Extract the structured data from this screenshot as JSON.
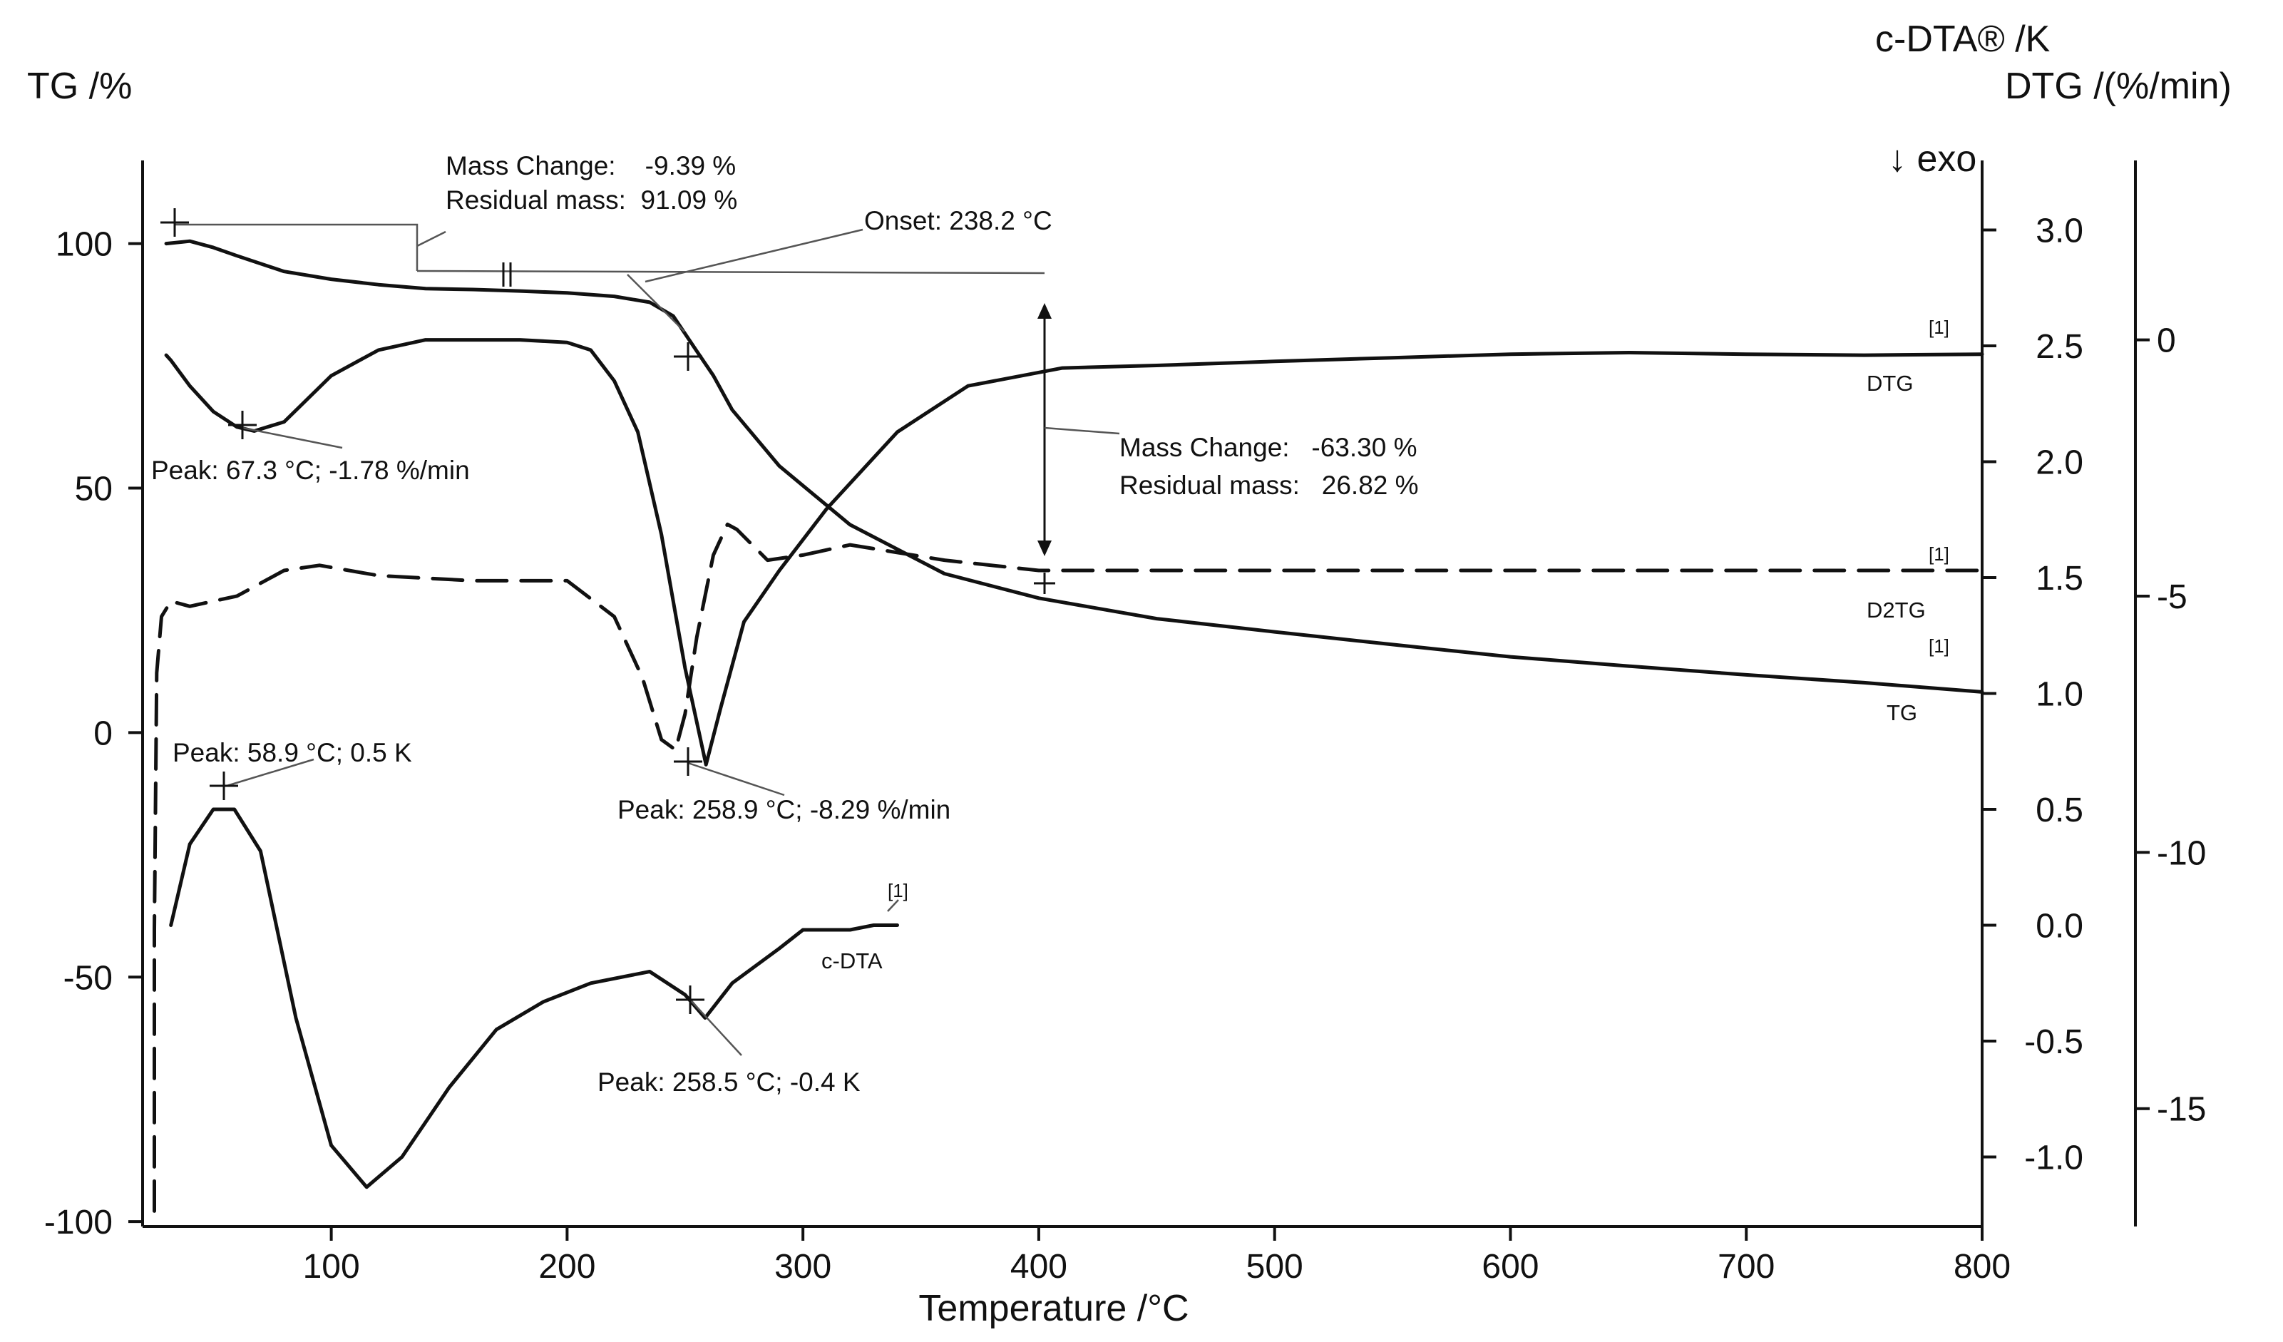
{
  "chart_data": {
    "type": "line",
    "title": "",
    "xlabel": "Temperature /°C",
    "xlim": [
      20,
      800
    ],
    "x_ticks": [
      100,
      200,
      300,
      400,
      500,
      600,
      700,
      800
    ],
    "y_axes": {
      "tg": {
        "label": "TG /%",
        "range": [
          -101,
          117
        ],
        "ticks": [
          100,
          50,
          0,
          -50,
          -100
        ]
      },
      "cdta": {
        "label": "c-DTA® /K",
        "exo_label": "↓ exo",
        "range": [
          -1.3,
          3.3
        ],
        "ticks": [
          "3.0",
          "2.5",
          "2.0",
          "1.5",
          "1.0",
          "0.5",
          "0.0",
          "-0.5",
          "-1.0"
        ]
      },
      "dtg": {
        "label": "DTG /(%/min)",
        "range": [
          -17.3,
          3.5
        ],
        "ticks": [
          0,
          -5,
          -10,
          -15
        ]
      }
    },
    "series": [
      {
        "name": "TG",
        "axis": "tg",
        "style": "solid",
        "x": [
          30,
          40,
          50,
          60,
          80,
          100,
          120,
          140,
          160,
          180,
          200,
          220,
          235,
          245,
          255,
          262,
          270,
          290,
          320,
          360,
          400,
          450,
          500,
          550,
          600,
          650,
          700,
          750,
          800
        ],
        "y": [
          100,
          100.5,
          99.2,
          97.5,
          94.3,
          92.7,
          91.6,
          90.8,
          90.6,
          90.3,
          89.9,
          89.2,
          88.0,
          85.2,
          78.0,
          73.0,
          66.0,
          54.5,
          42.5,
          32.5,
          27.5,
          23.3,
          20.6,
          18.0,
          15.5,
          13.6,
          11.8,
          10.2,
          8.3
        ]
      },
      {
        "name": "DTG",
        "axis": "dtg",
        "style": "solid",
        "x": [
          30,
          32,
          40,
          50,
          60,
          67.3,
          80,
          100,
          120,
          140,
          160,
          180,
          200,
          210,
          220,
          230,
          240,
          250,
          258.9,
          265,
          275,
          290,
          310,
          340,
          370,
          410,
          450,
          500,
          550,
          600,
          650,
          700,
          750,
          800
        ],
        "y": [
          -0.3,
          -0.4,
          -0.9,
          -1.4,
          -1.7,
          -1.78,
          -1.6,
          -0.7,
          -0.2,
          0.0,
          0.0,
          0.0,
          -0.05,
          -0.2,
          -0.8,
          -1.8,
          -3.8,
          -6.4,
          -8.29,
          -7.2,
          -5.5,
          -4.5,
          -3.3,
          -1.8,
          -0.9,
          -0.55,
          -0.5,
          -0.42,
          -0.35,
          -0.28,
          -0.25,
          -0.28,
          -0.3,
          -0.28
        ]
      },
      {
        "name": "D2TG",
        "axis": "dtg",
        "style": "dashed",
        "x": [
          25,
          25,
          26,
          28,
          32,
          40,
          60,
          80,
          95,
          120,
          160,
          200,
          220,
          232,
          240,
          246,
          250,
          255,
          262,
          268,
          272,
          285,
          300,
          320,
          360,
          400,
          500,
          600,
          700,
          800
        ],
        "y": [
          -17.0,
          -11.5,
          -6.5,
          -5.4,
          -5.1,
          -5.2,
          -5.0,
          -4.5,
          -4.4,
          -4.6,
          -4.7,
          -4.7,
          -5.4,
          -6.6,
          -7.8,
          -8.0,
          -7.3,
          -5.8,
          -4.2,
          -3.6,
          -3.7,
          -4.3,
          -4.2,
          -4.0,
          -4.3,
          -4.5,
          -4.5,
          -4.5,
          -4.5,
          -4.5
        ]
      },
      {
        "name": "c-DTA",
        "axis": "cdta",
        "style": "solid",
        "x": [
          32,
          40,
          50,
          58.9,
          70,
          85,
          100,
          115,
          130,
          150,
          170,
          190,
          210,
          235,
          250,
          258.5,
          270,
          290,
          300,
          320,
          330,
          340
        ],
        "y": [
          0.0,
          0.35,
          0.5,
          0.5,
          0.32,
          -0.4,
          -0.95,
          -1.13,
          -1.0,
          -0.7,
          -0.45,
          -0.33,
          -0.25,
          -0.2,
          -0.3,
          -0.4,
          -0.25,
          -0.1,
          -0.02,
          -0.02,
          0.0,
          0.0
        ]
      }
    ],
    "series_labels": {
      "dtg": "DTG",
      "d2tg": "D2TG",
      "tg": "TG",
      "cdta": "c-DTA",
      "marker": "[1]"
    },
    "annotations": {
      "mass_change_1": {
        "line1": "Mass Change:    -9.39 %",
        "line2": "Residual mass:  91.09 %"
      },
      "onset": "Onset: 238.2 °C",
      "mass_change_2": {
        "line1": "Mass Change:   -63.30 %",
        "line2": "Residual mass:   26.82 %"
      },
      "peak_dtg_1": "Peak: 67.3 °C; -1.78 %/min",
      "peak_dtg_2": "Peak: 258.9 °C; -8.29 %/min",
      "peak_dta_1": "Peak: 58.9 °C; 0.5 K",
      "peak_dta_2": "Peak: 258.5 °C; -0.4 K"
    },
    "colors": {
      "line": "#111111",
      "background": "#ffffff"
    }
  }
}
